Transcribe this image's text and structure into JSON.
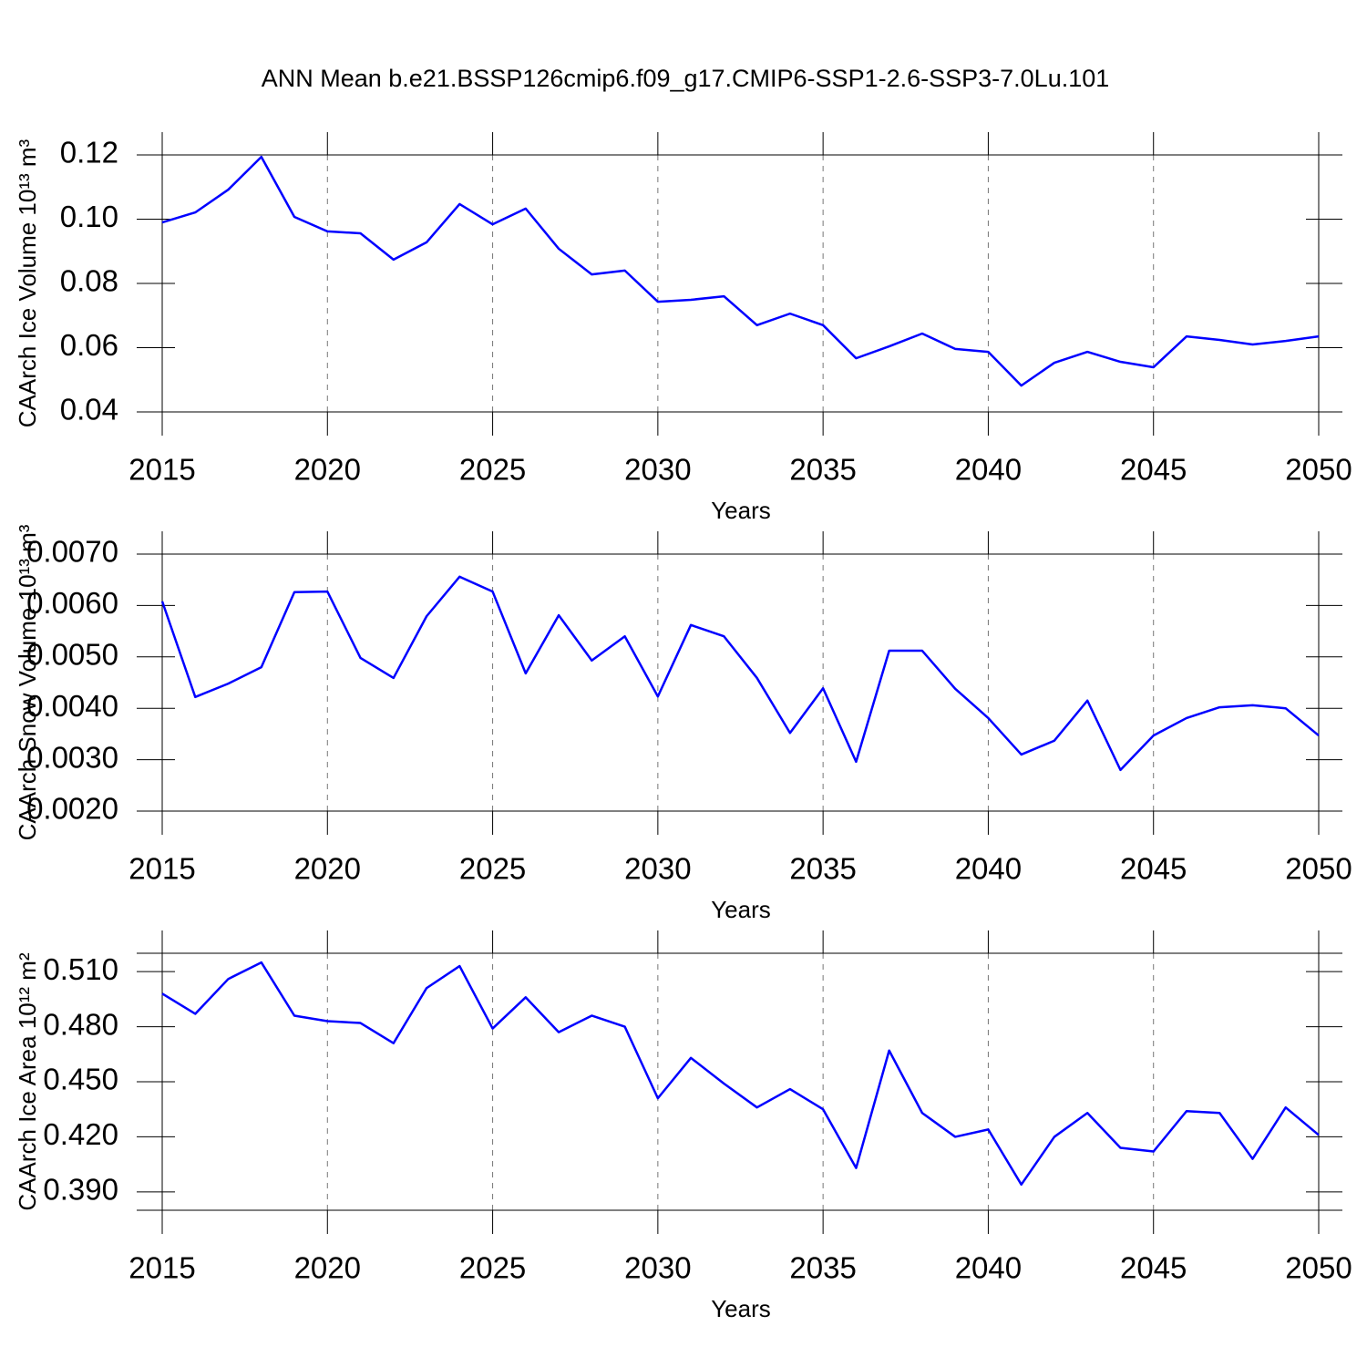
{
  "title": "ANN Mean b.e21.BSSP126cmip6.f09_g17.CMIP6-SSP1-2.6-SSP3-7.0Lu.101",
  "chart_data": [
    {
      "type": "line",
      "ylabel": "CAArch Ice Volume 10¹³ m³",
      "xlabel": "Years",
      "x": [
        2015,
        2016,
        2017,
        2018,
        2019,
        2020,
        2021,
        2022,
        2023,
        2024,
        2025,
        2026,
        2027,
        2028,
        2029,
        2030,
        2031,
        2032,
        2033,
        2034,
        2035,
        2036,
        2037,
        2038,
        2039,
        2040,
        2041,
        2042,
        2043,
        2044,
        2045,
        2046,
        2047,
        2048,
        2049,
        2050
      ],
      "series": [
        {
          "color": "#0000ff",
          "values": [
            0.099,
            0.1021,
            0.1092,
            0.1194,
            0.1007,
            0.0962,
            0.0956,
            0.0874,
            0.0928,
            0.1047,
            0.0984,
            0.1033,
            0.0908,
            0.0828,
            0.084,
            0.0743,
            0.0749,
            0.076,
            0.067,
            0.0706,
            0.067,
            0.0567,
            0.0604,
            0.0644,
            0.0596,
            0.0587,
            0.0482,
            0.0553,
            0.0587,
            0.0556,
            0.0539,
            0.0635,
            0.0624,
            0.061,
            0.0621,
            0.0635
          ]
        }
      ],
      "xlim": [
        2015,
        2050
      ],
      "xticks": [
        2015,
        2020,
        2025,
        2030,
        2035,
        2040,
        2045,
        2050
      ],
      "ylim": [
        0.04,
        0.12
      ],
      "yticks": [
        0.04,
        0.06,
        0.08,
        {
          "value": 0.1,
          "label": "0.10"
        },
        0.12
      ],
      "xgrid": true
    },
    {
      "type": "line",
      "ylabel": "CAArch Snow Volume 10¹³ m³",
      "xlabel": "Years",
      "x": [
        2015,
        2016,
        2017,
        2018,
        2019,
        2020,
        2021,
        2022,
        2023,
        2024,
        2025,
        2026,
        2027,
        2028,
        2029,
        2030,
        2031,
        2032,
        2033,
        2034,
        2035,
        2036,
        2037,
        2038,
        2039,
        2040,
        2041,
        2042,
        2043,
        2044,
        2045,
        2046,
        2047,
        2048,
        2049,
        2050
      ],
      "series": [
        {
          "color": "#0000ff",
          "values": [
            0.00608,
            0.00422,
            0.00448,
            0.0048,
            0.00626,
            0.00627,
            0.00498,
            0.00459,
            0.00579,
            0.00656,
            0.00627,
            0.00468,
            0.00581,
            0.00493,
            0.0054,
            0.00423,
            0.00562,
            0.0054,
            0.00459,
            0.00352,
            0.00439,
            0.00296,
            0.00512,
            0.00512,
            0.00438,
            0.00381,
            0.0031,
            0.00337,
            0.00415,
            0.0028,
            0.00347,
            0.00381,
            0.00402,
            0.00406,
            0.004,
            0.00347
          ]
        }
      ],
      "xlim": [
        2015,
        2050
      ],
      "xticks": [
        2015,
        2020,
        2025,
        2030,
        2035,
        2040,
        2045,
        2050
      ],
      "ylim": [
        0.002,
        0.007
      ],
      "yticks": [
        {
          "value": 0.002,
          "label": "0.0020"
        },
        {
          "value": 0.003,
          "label": "0.0030"
        },
        {
          "value": 0.004,
          "label": "0.0040"
        },
        {
          "value": 0.005,
          "label": "0.0050"
        },
        {
          "value": 0.006,
          "label": "0.0060"
        },
        {
          "value": 0.007,
          "label": "0.0070"
        }
      ],
      "xgrid": true
    },
    {
      "type": "line",
      "ylabel": "CAArch Ice Area 10¹² m²",
      "xlabel": "Years",
      "x": [
        2015,
        2016,
        2017,
        2018,
        2019,
        2020,
        2021,
        2022,
        2023,
        2024,
        2025,
        2026,
        2027,
        2028,
        2029,
        2030,
        2031,
        2032,
        2033,
        2034,
        2035,
        2036,
        2037,
        2038,
        2039,
        2040,
        2041,
        2042,
        2043,
        2044,
        2045,
        2046,
        2047,
        2048,
        2049,
        2050
      ],
      "series": [
        {
          "color": "#0000ff",
          "values": [
            0.498,
            0.487,
            0.506,
            0.515,
            0.486,
            0.483,
            0.482,
            0.471,
            0.501,
            0.513,
            0.479,
            0.496,
            0.477,
            0.486,
            0.48,
            0.441,
            0.463,
            0.449,
            0.436,
            0.446,
            0.435,
            0.403,
            0.467,
            0.433,
            0.42,
            0.424,
            0.394,
            0.42,
            0.433,
            0.414,
            0.412,
            0.434,
            0.433,
            0.408,
            0.436,
            0.421
          ]
        }
      ],
      "xlim": [
        2015,
        2050
      ],
      "xticks": [
        2015,
        2020,
        2025,
        2030,
        2035,
        2040,
        2045,
        2050
      ],
      "ylim": [
        0.38,
        0.52
      ],
      "yticks": [
        {
          "value": 0.39,
          "label": "0.390"
        },
        {
          "value": 0.42,
          "label": "0.420"
        },
        {
          "value": 0.45,
          "label": "0.450"
        },
        {
          "value": 0.48,
          "label": "0.480"
        },
        {
          "value": 0.51,
          "label": "0.510"
        }
      ],
      "xgrid": true
    }
  ]
}
